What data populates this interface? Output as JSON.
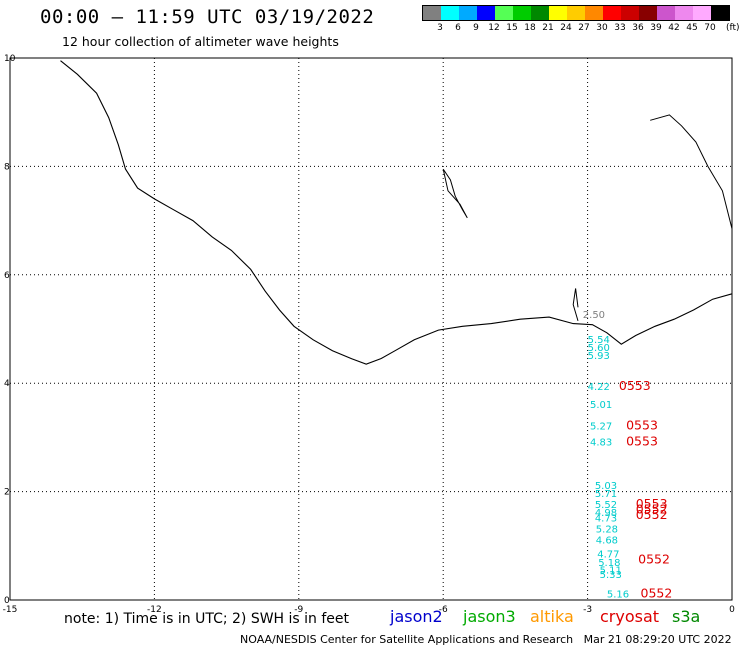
{
  "header": {
    "title": "00:00 – 11:59 UTC 03/19/2022",
    "subtitle": "12 hour collection of altimeter wave heights"
  },
  "color_scale": {
    "unit": "(ft)",
    "stops": [
      {
        "label": "3",
        "color": "#808080"
      },
      {
        "label": "6",
        "color": "#00ffff"
      },
      {
        "label": "9",
        "color": "#00aaff"
      },
      {
        "label": "12",
        "color": "#0000ff"
      },
      {
        "label": "15",
        "color": "#55ff55"
      },
      {
        "label": "18",
        "color": "#00cc00"
      },
      {
        "label": "21",
        "color": "#008800"
      },
      {
        "label": "24",
        "color": "#ffff00"
      },
      {
        "label": "27",
        "color": "#ffcc00"
      },
      {
        "label": "30",
        "color": "#ff8800"
      },
      {
        "label": "33",
        "color": "#ff0000"
      },
      {
        "label": "36",
        "color": "#cc0000"
      },
      {
        "label": "39",
        "color": "#880000"
      },
      {
        "label": "42",
        "color": "#cc55cc"
      },
      {
        "label": "45",
        "color": "#ee88ee"
      },
      {
        "label": "70",
        "color": "#ffaaff"
      },
      {
        "label": "",
        "color": "#000000"
      }
    ]
  },
  "axes": {
    "x_ticks": [
      {
        "label": "-15",
        "value": -15
      },
      {
        "label": "-12",
        "value": -12
      },
      {
        "label": "-9",
        "value": -9
      },
      {
        "label": "-6",
        "value": -6
      },
      {
        "label": "-3",
        "value": -3
      },
      {
        "label": "0",
        "value": 0
      }
    ],
    "y_ticks": [
      {
        "label": "0",
        "value": 0
      },
      {
        "label": "2",
        "value": 2
      },
      {
        "label": "4",
        "value": 4
      },
      {
        "label": "6",
        "value": 6
      },
      {
        "label": "8",
        "value": 8
      },
      {
        "label": "10",
        "value": 10
      }
    ],
    "xlim": [
      -15,
      0
    ],
    "ylim": [
      0,
      10
    ]
  },
  "coastline": [
    [
      -13.95,
      9.95
    ],
    [
      -13.6,
      9.7
    ],
    [
      -13.2,
      9.35
    ],
    [
      -12.95,
      8.9
    ],
    [
      -12.75,
      8.4
    ],
    [
      -12.6,
      7.95
    ],
    [
      -12.35,
      7.6
    ],
    [
      -12.0,
      7.4
    ],
    [
      -11.6,
      7.2
    ],
    [
      -11.2,
      7.0
    ],
    [
      -10.8,
      6.7
    ],
    [
      -10.4,
      6.45
    ],
    [
      -10.0,
      6.1
    ],
    [
      -9.7,
      5.7
    ],
    [
      -9.4,
      5.35
    ],
    [
      -9.1,
      5.05
    ],
    [
      -8.7,
      4.8
    ],
    [
      -8.3,
      4.6
    ],
    [
      -7.9,
      4.45
    ],
    [
      -7.6,
      4.35
    ],
    [
      -7.3,
      4.45
    ],
    [
      -7.0,
      4.6
    ],
    [
      -6.6,
      4.8
    ],
    [
      -6.1,
      4.98
    ],
    [
      -5.6,
      5.05
    ],
    [
      -5.0,
      5.1
    ],
    [
      -4.4,
      5.18
    ],
    [
      -3.8,
      5.22
    ],
    [
      -3.3,
      5.1
    ],
    [
      -2.9,
      5.08
    ],
    [
      -2.6,
      4.93
    ],
    [
      -2.3,
      4.72
    ],
    [
      -2.0,
      4.88
    ],
    [
      -1.6,
      5.05
    ],
    [
      -1.2,
      5.18
    ],
    [
      -0.8,
      5.35
    ],
    [
      -0.4,
      5.55
    ],
    [
      0,
      5.65
    ]
  ],
  "coast_patches": [
    [
      [
        -6.0,
        7.95
      ],
      [
        -5.85,
        7.75
      ],
      [
        -5.75,
        7.45
      ],
      [
        -5.6,
        7.2
      ],
      [
        -5.5,
        7.05
      ],
      [
        -5.65,
        7.3
      ],
      [
        -5.9,
        7.55
      ],
      [
        -6.0,
        7.95
      ]
    ],
    [
      [
        -1.7,
        8.85
      ],
      [
        -1.3,
        8.95
      ],
      [
        -1.05,
        8.75
      ],
      [
        -0.75,
        8.45
      ],
      [
        -0.5,
        8.0
      ],
      [
        -0.2,
        7.55
      ],
      [
        0,
        6.85
      ]
    ],
    [
      [
        -3.2,
        5.15
      ],
      [
        -3.3,
        5.45
      ],
      [
        -3.25,
        5.75
      ],
      [
        -3.2,
        5.4
      ]
    ]
  ],
  "tracks": [
    {
      "sat": "jason3",
      "color": "#00cccc",
      "points": [
        {
          "label": "5.54",
          "x": -3.0,
          "y": 4.82
        },
        {
          "label": "5.60",
          "x": -3.0,
          "y": 4.67
        },
        {
          "label": "5.93",
          "x": -3.0,
          "y": 4.52
        },
        {
          "label": "4.22",
          "x": -3.0,
          "y": 3.95
        },
        {
          "label": "5.01",
          "x": -2.95,
          "y": 3.62
        },
        {
          "label": "5.27",
          "x": -2.95,
          "y": 3.22
        },
        {
          "label": "4.83",
          "x": -2.95,
          "y": 2.92
        },
        {
          "label": "5.03",
          "x": -2.85,
          "y": 2.12
        },
        {
          "label": "5.71",
          "x": -2.85,
          "y": 1.97
        },
        {
          "label": "5.52",
          "x": -2.85,
          "y": 1.77
        },
        {
          "label": "4.98",
          "x": -2.85,
          "y": 1.62
        },
        {
          "label": "4.73",
          "x": -2.85,
          "y": 1.52
        },
        {
          "label": "5.28",
          "x": -2.83,
          "y": 1.32
        },
        {
          "label": "4.68",
          "x": -2.83,
          "y": 1.12
        },
        {
          "label": "4.77",
          "x": -2.8,
          "y": 0.86
        },
        {
          "label": "5.18",
          "x": -2.78,
          "y": 0.7
        },
        {
          "label": "5.11",
          "x": -2.75,
          "y": 0.56
        },
        {
          "label": "5.33",
          "x": -2.75,
          "y": 0.48
        },
        {
          "label": "5.16",
          "x": -2.6,
          "y": 0.12
        }
      ]
    },
    {
      "sat": "cryosat",
      "color": "#dd0000",
      "points": [
        {
          "label": "0553",
          "x": -2.35,
          "y": 3.95
        },
        {
          "label": "0553",
          "x": -2.2,
          "y": 3.22
        },
        {
          "label": "0553",
          "x": -2.2,
          "y": 2.92
        },
        {
          "label": "0553",
          "x": -2.0,
          "y": 1.77
        },
        {
          "label": "0552",
          "x": -2.0,
          "y": 1.67
        },
        {
          "label": "0552",
          "x": -2.0,
          "y": 1.57
        },
        {
          "label": "0552",
          "x": -1.95,
          "y": 0.75
        },
        {
          "label": "0552",
          "x": -1.9,
          "y": 0.12
        }
      ]
    },
    {
      "sat": "other",
      "color": "#808080",
      "points": [
        {
          "label": "2.50",
          "x": -3.1,
          "y": 5.28
        }
      ]
    }
  ],
  "legend": {
    "note": "note: 1) Time is in UTC; 2) SWH is in feet",
    "sats": [
      {
        "label": "jason2",
        "color": "#0000cc"
      },
      {
        "label": "jason3",
        "color": "#00aa00"
      },
      {
        "label": "altika",
        "color": "#ff9900"
      },
      {
        "label": "cryosat",
        "color": "#dd0000"
      },
      {
        "label": "s3a",
        "color": "#008800"
      }
    ]
  },
  "footer": {
    "credit": "NOAA/NESDIS Center for Satellite Applications and Research",
    "timestamp": "Mar 21 08:29:20 UTC 2022"
  }
}
